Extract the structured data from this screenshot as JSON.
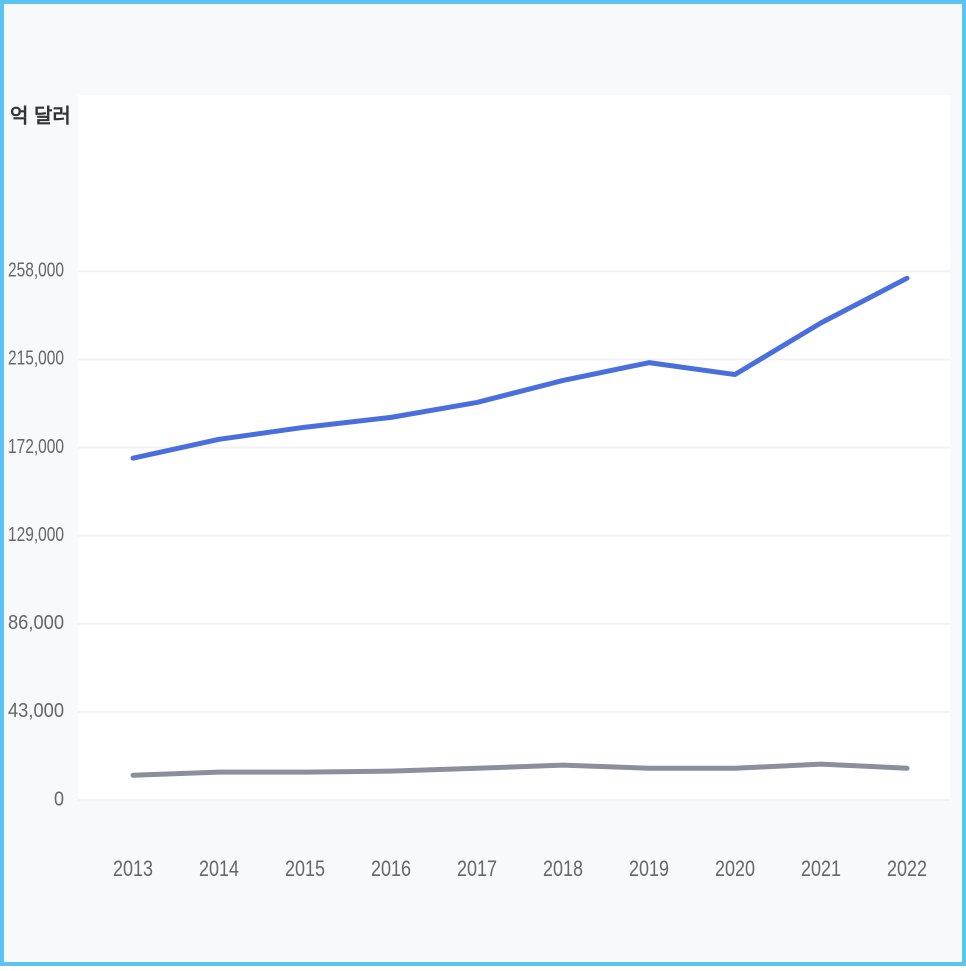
{
  "chart_data": {
    "type": "line",
    "y_label": "억 달러",
    "categories": [
      "2013",
      "2014",
      "2015",
      "2016",
      "2017",
      "2018",
      "2019",
      "2020",
      "2021",
      "2022"
    ],
    "series": [
      {
        "color": "#4a6fdc",
        "values": [
          166800,
          176000,
          181900,
          186700,
          194000,
          204700,
          213400,
          207600,
          232800,
          254600
        ]
      },
      {
        "color": "#8a8f99",
        "values": [
          12100,
          13600,
          13600,
          14100,
          15500,
          17000,
          15500,
          15500,
          17500,
          15500
        ]
      }
    ],
    "ylim": [
      0,
      344000
    ],
    "yticks": [
      0,
      {
        "value": 43000,
        "label": "43,000"
      },
      {
        "value": 86000,
        "label": "86,000"
      },
      {
        "value": 129000,
        "label": "129,000"
      },
      {
        "value": 172000,
        "label": "172,000"
      },
      {
        "value": 215000,
        "label": "215,000"
      },
      {
        "value": 258000,
        "label": "258,000"
      }
    ],
    "grid": true
  }
}
